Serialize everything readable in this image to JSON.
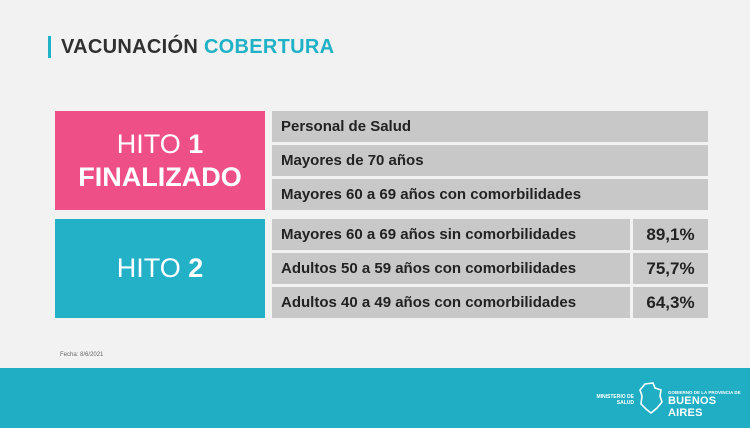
{
  "header": {
    "title_main": "VACUNACIÓN",
    "title_highlight": "COBERTURA"
  },
  "hito1": {
    "label_word": "HITO",
    "label_number": "1",
    "status": "FINALIZADO",
    "rows": [
      "Personal de Salud",
      "Mayores de 70 años",
      "Mayores 60 a 69 años con comorbilidades"
    ]
  },
  "hito2": {
    "label_word": "HITO",
    "label_number": "2",
    "rows": [
      {
        "label": "Mayores 60 a 69 años sin comorbilidades",
        "pct": "89,1%"
      },
      {
        "label": "Adultos 50 a 59 años con comorbilidades",
        "pct": "75,7%"
      },
      {
        "label": "Adultos 40 a 49 años con comorbilidades",
        "pct": "64,3%"
      }
    ]
  },
  "fecha": "Fecha: 8/6/2021",
  "footer": {
    "ministerio": "MINISTERIO DE SALUD",
    "gobierno_small": "GOBIERNO DE LA PROVINCIA DE",
    "gobierno_big": "BUENOS AIRES",
    "logo_icon": "province-map-icon"
  },
  "colors": {
    "pink": "#ee4f86",
    "cyan": "#23b1c8",
    "gray": "#c8c8c8",
    "footer": "#1faec3"
  }
}
